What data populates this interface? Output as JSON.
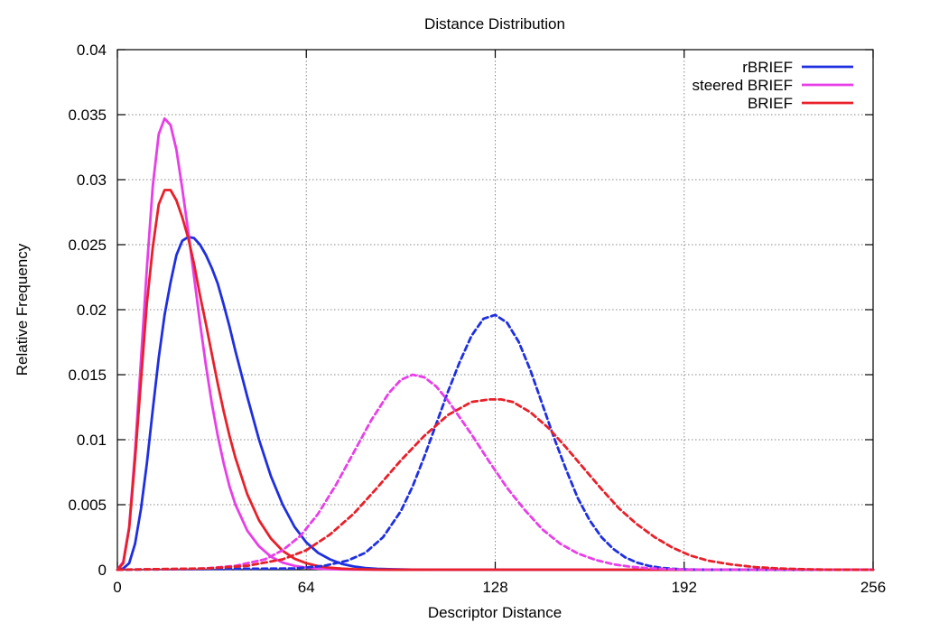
{
  "chart_data": {
    "type": "line",
    "title": "Distance Distribution",
    "xlabel": "Descriptor Distance",
    "ylabel": "Relative Frequency",
    "xlim": [
      0,
      256
    ],
    "ylim": [
      0,
      0.04
    ],
    "x_ticks": [
      0,
      64,
      128,
      192,
      256
    ],
    "x_tick_labels": [
      "0",
      "64",
      "128",
      "192",
      "256"
    ],
    "y_ticks": [
      0,
      0.005,
      0.01,
      0.015,
      0.02,
      0.025,
      0.03,
      0.035,
      0.04
    ],
    "y_tick_labels": [
      "0",
      "0.005",
      "0.01",
      "0.015",
      "0.02",
      "0.025",
      "0.03",
      "0.035",
      "0.04"
    ],
    "grid": true,
    "legend_position": "top-right",
    "legend": [
      {
        "label": "rBRIEF",
        "color": "#1f2fe0"
      },
      {
        "label": "steered BRIEF",
        "color": "#e83ee8"
      },
      {
        "label": "BRIEF",
        "color": "#e8202a"
      }
    ],
    "series": [
      {
        "name": "rBRIEF",
        "color": "#1f2fe0",
        "dash": "solid",
        "x": [
          0,
          2,
          4,
          6,
          8,
          10,
          12,
          14,
          16,
          18,
          20,
          22,
          24,
          26,
          28,
          30,
          32,
          34,
          36,
          38,
          40,
          44,
          48,
          52,
          56,
          60,
          64,
          68,
          72,
          76,
          80,
          84,
          88,
          92,
          96,
          100,
          104,
          110,
          120,
          140,
          160,
          192,
          256
        ],
        "y": [
          0,
          0.0001,
          0.0005,
          0.002,
          0.0047,
          0.0082,
          0.0123,
          0.0163,
          0.0196,
          0.0221,
          0.0242,
          0.0253,
          0.0256,
          0.0255,
          0.025,
          0.0242,
          0.0232,
          0.022,
          0.0204,
          0.0187,
          0.0168,
          0.0133,
          0.01,
          0.0072,
          0.005,
          0.0033,
          0.0021,
          0.0013,
          0.0008,
          0.00045,
          0.00025,
          0.00013,
          7e-05,
          4e-05,
          2e-05,
          1e-05,
          5e-06,
          2e-06,
          0,
          0,
          0,
          0,
          0
        ]
      },
      {
        "name": "steered BRIEF",
        "color": "#e83ee8",
        "dash": "solid",
        "x": [
          0,
          2,
          4,
          6,
          8,
          10,
          12,
          14,
          16,
          18,
          20,
          22,
          24,
          26,
          28,
          30,
          32,
          34,
          36,
          38,
          40,
          44,
          48,
          52,
          56,
          60,
          64,
          68,
          72,
          76,
          80,
          84,
          88,
          92,
          96,
          100,
          110,
          120,
          140,
          160,
          192,
          256
        ],
        "y": [
          0,
          0.0006,
          0.0033,
          0.0091,
          0.0162,
          0.0232,
          0.0295,
          0.0335,
          0.0347,
          0.0342,
          0.0323,
          0.0293,
          0.026,
          0.0225,
          0.019,
          0.0157,
          0.0128,
          0.0103,
          0.0082,
          0.0064,
          0.005,
          0.003,
          0.0018,
          0.001,
          0.00055,
          0.0003,
          0.00016,
          8e-05,
          4e-05,
          2e-05,
          1e-05,
          5e-06,
          0,
          0,
          0,
          0,
          0,
          0,
          0,
          0,
          0,
          0
        ]
      },
      {
        "name": "BRIEF",
        "color": "#e8202a",
        "dash": "solid",
        "x": [
          0,
          2,
          4,
          6,
          8,
          10,
          12,
          14,
          16,
          18,
          20,
          22,
          24,
          26,
          28,
          30,
          32,
          34,
          36,
          38,
          40,
          44,
          48,
          52,
          56,
          60,
          64,
          68,
          72,
          76,
          80,
          84,
          88,
          92,
          96,
          100,
          110,
          120,
          140,
          160,
          192,
          256
        ],
        "y": [
          0,
          0.0005,
          0.0032,
          0.0085,
          0.0146,
          0.0205,
          0.0248,
          0.0281,
          0.0292,
          0.0292,
          0.0284,
          0.0271,
          0.0255,
          0.0235,
          0.0211,
          0.0189,
          0.0166,
          0.0143,
          0.0122,
          0.0103,
          0.0086,
          0.0058,
          0.0038,
          0.0024,
          0.00145,
          0.00085,
          0.0005,
          0.00028,
          0.00015,
          8e-05,
          4e-05,
          2e-05,
          1e-05,
          0,
          0,
          0,
          0,
          0,
          0,
          0,
          0,
          0
        ]
      },
      {
        "name": "",
        "color": "#1f2fe0",
        "dash": "dashed",
        "x": [
          0,
          60,
          70,
          78,
          84,
          90,
          96,
          100,
          104,
          108,
          112,
          116,
          120,
          124,
          128,
          132,
          136,
          140,
          144,
          148,
          152,
          156,
          160,
          164,
          168,
          172,
          176,
          180,
          184,
          188,
          192,
          196,
          200,
          210,
          256
        ],
        "y": [
          0,
          0.0001,
          0.0003,
          0.0007,
          0.0013,
          0.0025,
          0.0045,
          0.0064,
          0.0087,
          0.0112,
          0.0137,
          0.016,
          0.018,
          0.0193,
          0.0196,
          0.019,
          0.0175,
          0.0153,
          0.0127,
          0.0101,
          0.0077,
          0.0055,
          0.0038,
          0.0025,
          0.0016,
          0.00095,
          0.00055,
          0.0003,
          0.00015,
          7e-05,
          3e-05,
          1e-05,
          0,
          0,
          0
        ]
      },
      {
        "name": "",
        "color": "#e83ee8",
        "dash": "dashed",
        "x": [
          0,
          20,
          30,
          40,
          50,
          56,
          62,
          68,
          74,
          80,
          86,
          92,
          96,
          100,
          104,
          108,
          112,
          116,
          120,
          126,
          132,
          138,
          144,
          150,
          156,
          162,
          168,
          174,
          180,
          186,
          192,
          200,
          210,
          220,
          256
        ],
        "y": [
          0,
          5e-05,
          0.0001,
          0.0003,
          0.0008,
          0.0015,
          0.0026,
          0.0043,
          0.0065,
          0.009,
          0.0115,
          0.0136,
          0.0146,
          0.015,
          0.0148,
          0.0141,
          0.013,
          0.0117,
          0.0104,
          0.0083,
          0.0063,
          0.0046,
          0.0031,
          0.002,
          0.00125,
          0.00075,
          0.00042,
          0.00022,
          0.00011,
          5e-05,
          2e-05,
          1e-05,
          0,
          0,
          0
        ]
      },
      {
        "name": "",
        "color": "#e8202a",
        "dash": "dashed",
        "x": [
          0,
          30,
          44,
          56,
          64,
          72,
          80,
          88,
          96,
          104,
          112,
          120,
          126,
          130,
          134,
          140,
          146,
          152,
          158,
          164,
          170,
          176,
          182,
          188,
          194,
          200,
          208,
          216,
          224,
          232,
          240,
          256
        ],
        "y": [
          0,
          0.0001,
          0.0003,
          0.0008,
          0.0015,
          0.0027,
          0.0043,
          0.0063,
          0.0084,
          0.0103,
          0.0119,
          0.0129,
          0.0131,
          0.0131,
          0.0129,
          0.0121,
          0.0109,
          0.0094,
          0.0078,
          0.0062,
          0.0047,
          0.0035,
          0.0025,
          0.0017,
          0.0011,
          0.0007,
          0.0004,
          0.0002,
          0.0001,
          4e-05,
          1e-05,
          0
        ]
      }
    ]
  }
}
